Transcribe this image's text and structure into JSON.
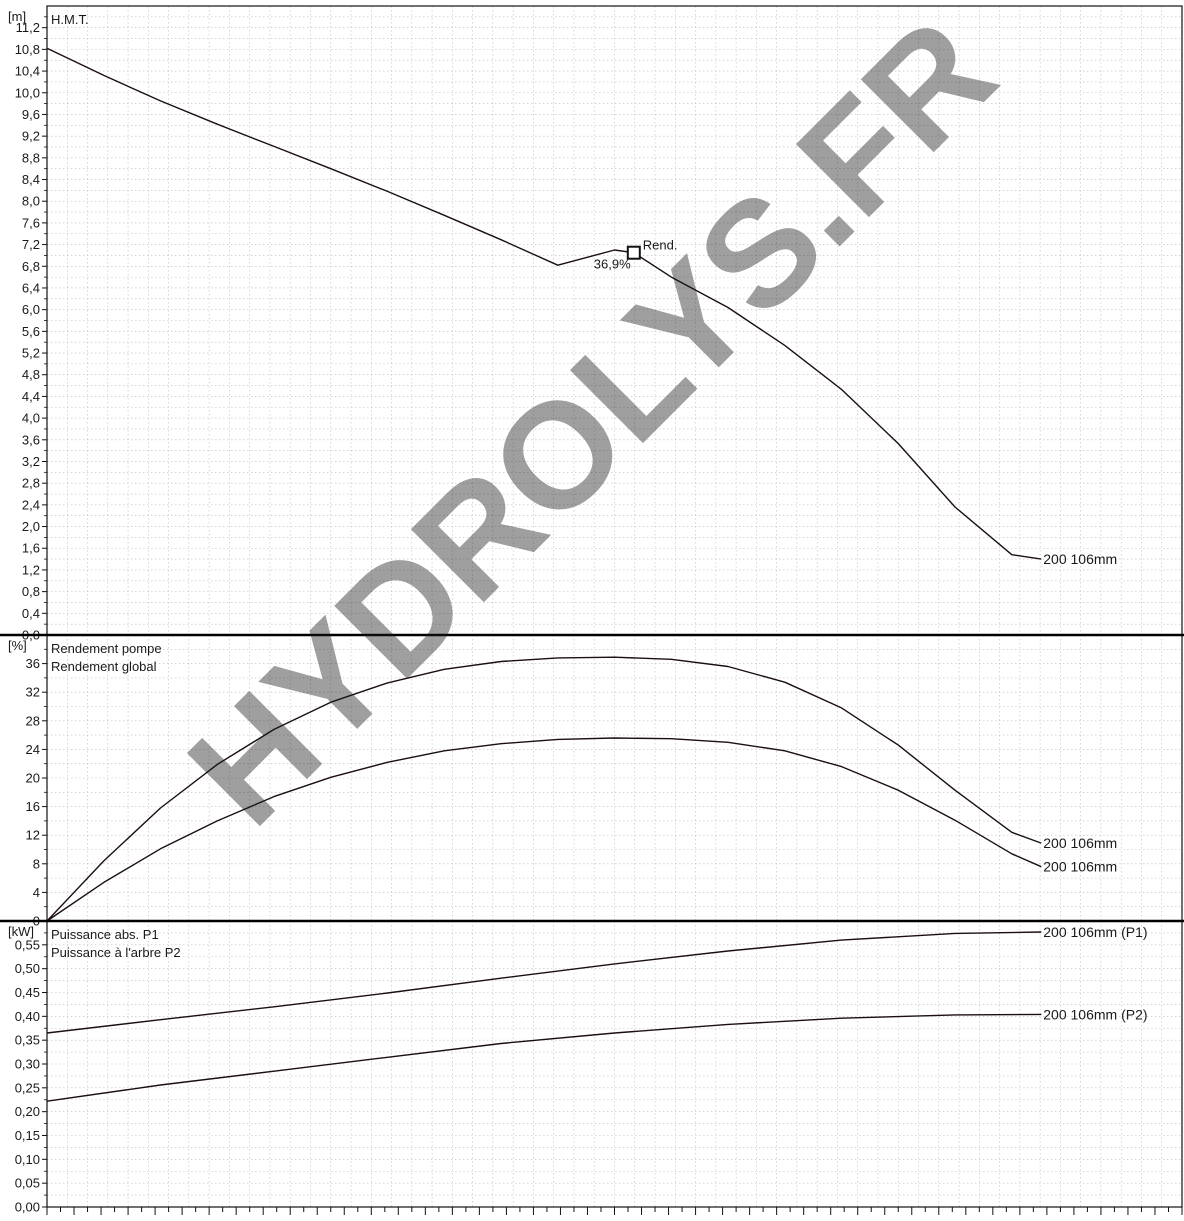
{
  "watermark": {
    "text": "HYDROLYS.FR",
    "color": "#5aaed0"
  },
  "chart_data": [
    {
      "type": "line",
      "panel": "head",
      "unit": "[m]",
      "labels": [
        "H.M.T."
      ],
      "ylim": [
        0.0,
        11.6
      ],
      "y_ticks": [
        0.0,
        0.4,
        0.8,
        1.2,
        1.6,
        2.0,
        2.4,
        2.8,
        3.2,
        3.6,
        4.0,
        4.4,
        4.8,
        5.2,
        5.6,
        6.0,
        6.4,
        6.8,
        7.2,
        7.6,
        8.0,
        8.4,
        8.8,
        9.2,
        9.6,
        10.0,
        10.4,
        10.8,
        11.2
      ],
      "y_tick_labels": [
        "0,0",
        "0,4",
        "0,8",
        "1,2",
        "1,6",
        "2,0",
        "2,4",
        "2,8",
        "3,2",
        "3,6",
        "4,0",
        "4,4",
        "4,8",
        "5,2",
        "5,6",
        "6,0",
        "6,4",
        "6,8",
        "7,2",
        "7,6",
        "8,0",
        "8,4",
        "8,8",
        "9,2",
        "9,6",
        "10,0",
        "10,4",
        "10,8",
        "11,2"
      ],
      "grid": true,
      "series": [
        {
          "name": "200 106mm",
          "x": [
            0,
            5,
            10,
            15,
            20,
            25,
            30,
            35,
            40,
            45,
            50,
            51.7,
            55,
            60,
            65,
            70,
            75,
            80,
            85,
            87.6
          ],
          "y": [
            10.82,
            10.32,
            9.85,
            9.42,
            9.01,
            8.6,
            8.18,
            7.74,
            7.29,
            6.82,
            7.1,
            7.05,
            6.6,
            6.04,
            5.34,
            4.53,
            3.53,
            2.36,
            1.48,
            1.4
          ]
        }
      ],
      "annotations": [
        {
          "text": "Rend.",
          "x": 51.7,
          "y": 7.05
        },
        {
          "text": "36,9%",
          "x": 51.7,
          "y": 7.05
        }
      ],
      "xlim": [
        0,
        100
      ]
    },
    {
      "type": "line",
      "panel": "efficiency",
      "unit": "[%]",
      "labels": [
        "Rendement pompe",
        "Rendement global"
      ],
      "ylim": [
        0,
        40
      ],
      "y_ticks": [
        0,
        4,
        8,
        12,
        16,
        20,
        24,
        28,
        32,
        36
      ],
      "y_tick_labels": [
        "0",
        "4",
        "8",
        "12",
        "16",
        "20",
        "24",
        "28",
        "32",
        "36"
      ],
      "grid": true,
      "series": [
        {
          "name": "200 106mm",
          "x": [
            0,
            5,
            10,
            15,
            20,
            25,
            30,
            35,
            40,
            45,
            50,
            55,
            60,
            65,
            70,
            75,
            80,
            85,
            87.6
          ],
          "y": [
            0,
            8.4,
            15.8,
            21.9,
            26.8,
            30.6,
            33.3,
            35.2,
            36.3,
            36.8,
            36.9,
            36.6,
            35.6,
            33.4,
            29.8,
            24.6,
            18.3,
            12.4,
            10.9
          ]
        },
        {
          "name": "200 106mm",
          "x": [
            0,
            5,
            10,
            15,
            20,
            25,
            30,
            35,
            40,
            45,
            50,
            55,
            60,
            65,
            70,
            75,
            80,
            85,
            87.6
          ],
          "y": [
            0,
            5.4,
            10.1,
            14.0,
            17.4,
            20.1,
            22.2,
            23.8,
            24.8,
            25.4,
            25.6,
            25.5,
            25.0,
            23.8,
            21.6,
            18.3,
            14.1,
            9.4,
            7.6
          ]
        }
      ],
      "xlim": [
        0,
        100
      ]
    },
    {
      "type": "line",
      "panel": "power",
      "unit": "[kW]",
      "labels": [
        "Puissance abs. P1",
        "Puissance à l'arbre P2"
      ],
      "ylim": [
        0.0,
        0.6
      ],
      "y_ticks": [
        0.0,
        0.05,
        0.1,
        0.15,
        0.2,
        0.25,
        0.3,
        0.35,
        0.4,
        0.45,
        0.5,
        0.55
      ],
      "y_tick_labels": [
        "0,00",
        "0,05",
        "0,10",
        "0,15",
        "0,20",
        "0,25",
        "0,30",
        "0,35",
        "0,40",
        "0,45",
        "0,50",
        "0,55"
      ],
      "grid": true,
      "series": [
        {
          "name": "200 106mm (P1)",
          "x": [
            0,
            10,
            20,
            30,
            40,
            50,
            60,
            70,
            80,
            87.6
          ],
          "y": [
            0.365,
            0.393,
            0.42,
            0.449,
            0.48,
            0.51,
            0.537,
            0.56,
            0.574,
            0.577
          ]
        },
        {
          "name": "200 106mm (P2)",
          "x": [
            0,
            10,
            20,
            30,
            40,
            50,
            60,
            70,
            80,
            87.6
          ],
          "y": [
            0.222,
            0.256,
            0.285,
            0.314,
            0.343,
            0.365,
            0.383,
            0.396,
            0.403,
            0.404
          ]
        }
      ],
      "xlim": [
        0,
        100
      ]
    }
  ]
}
